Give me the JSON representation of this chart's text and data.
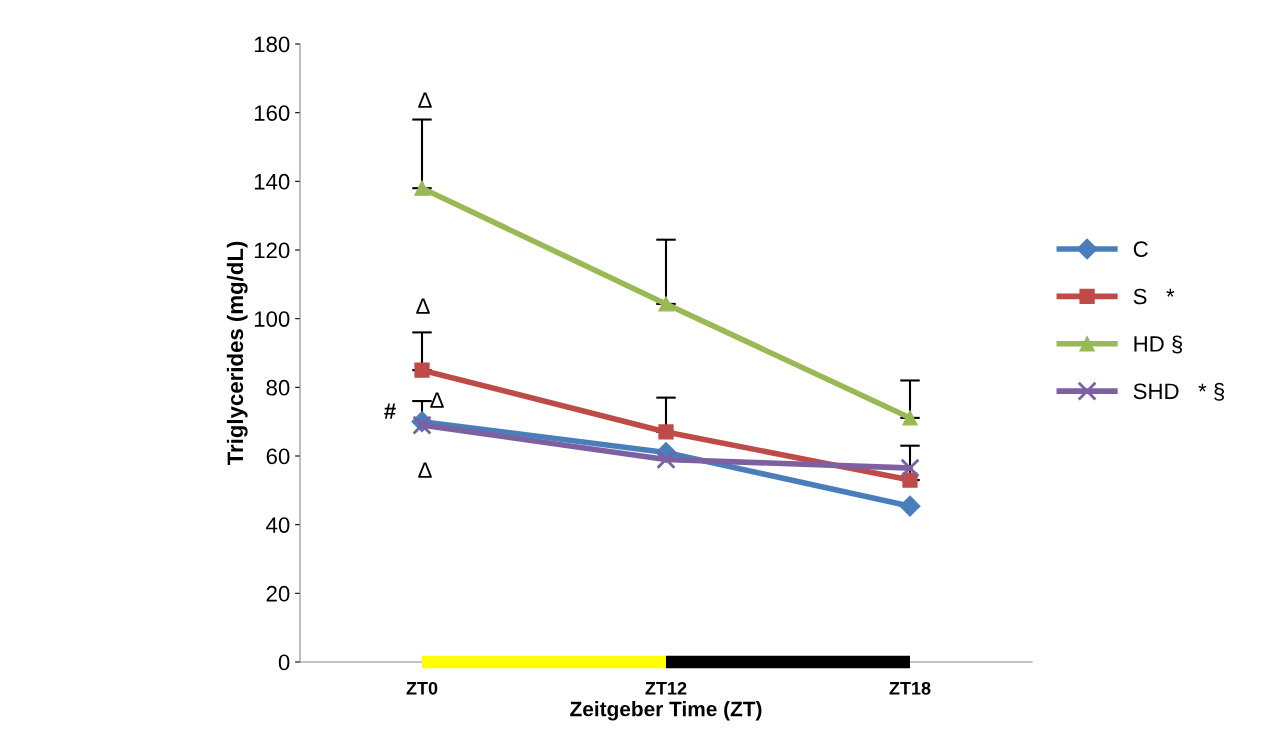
{
  "chart_data": {
    "type": "line",
    "xlabel": "Zeitgeber Time (ZT)",
    "ylabel": "Triglycerides (mg/dL)",
    "categories": [
      "ZT0",
      "ZT12",
      "ZT18"
    ],
    "series": [
      {
        "name": "C",
        "color": "#4a7ebb",
        "marker": "diamond",
        "values": [
          70,
          61,
          45.4
        ],
        "errors": [
          [
            70,
            76
          ],
          null,
          null
        ]
      },
      {
        "name": "S   *",
        "color": "#be4b48",
        "marker": "square",
        "values": [
          85,
          67,
          53
        ],
        "errors": [
          [
            85,
            96
          ],
          [
            67,
            77
          ],
          [
            53,
            63
          ]
        ]
      },
      {
        "name": "HD §",
        "color": "#98b954",
        "marker": "triangle",
        "values": [
          138,
          104.3,
          71.1
        ],
        "errors": [
          [
            138,
            158
          ],
          [
            104.3,
            123
          ],
          [
            71.1,
            82
          ]
        ]
      },
      {
        "name": "SHD   * §",
        "color": "#7d60a0",
        "marker": "cross",
        "values": [
          69,
          59,
          56.5
        ]
      }
    ],
    "ylim": [
      0,
      180
    ],
    "yticks": [
      0,
      20,
      40,
      60,
      80,
      100,
      120,
      140,
      160,
      180
    ],
    "annotations": [
      "Δ",
      "Δ",
      "#",
      "Δ",
      "Δ"
    ],
    "grid": false,
    "legend": "right",
    "line_style": "solid"
  }
}
